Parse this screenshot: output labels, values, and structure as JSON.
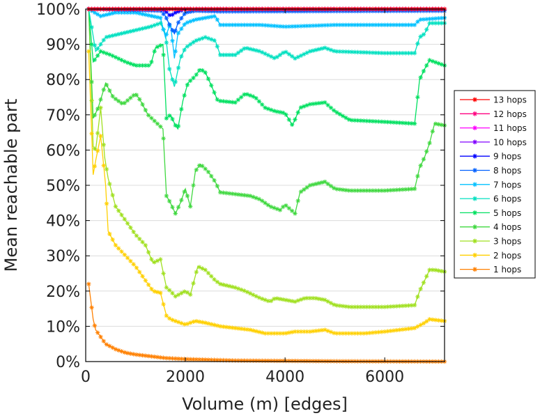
{
  "chart_data": {
    "type": "line",
    "title": "",
    "xlabel": "Volume (m) [edges]",
    "ylabel": "Mean reachable part",
    "xlim": [
      0,
      7200
    ],
    "ylim": [
      0,
      100
    ],
    "x_ticks": [
      0,
      2000,
      4000,
      6000
    ],
    "x_tick_labels": [
      "0",
      "2000",
      "4000",
      "6000"
    ],
    "y_ticks": [
      0,
      10,
      20,
      30,
      40,
      50,
      60,
      70,
      80,
      90,
      100
    ],
    "y_tick_labels": [
      "0%",
      "10%",
      "20%",
      "30%",
      "40%",
      "50%",
      "60%",
      "70%",
      "80%",
      "90%",
      "100%"
    ],
    "grid": "horizontal",
    "legend_position": "right",
    "series": [
      {
        "name": "13 hops",
        "color": "#ff0000",
        "points": [
          [
            60,
            100
          ],
          [
            7200,
            100
          ]
        ]
      },
      {
        "name": "12 hops",
        "color": "#ff0080",
        "points": [
          [
            60,
            100
          ],
          [
            7200,
            100
          ]
        ]
      },
      {
        "name": "11 hops",
        "color": "#ff00ff",
        "points": [
          [
            60,
            100
          ],
          [
            7200,
            100
          ]
        ]
      },
      {
        "name": "10 hops",
        "color": "#8000ff",
        "points": [
          [
            60,
            100
          ],
          [
            7200,
            100
          ]
        ]
      },
      {
        "name": "9 hops",
        "color": "#0000ff",
        "points": [
          [
            60,
            100
          ],
          [
            1500,
            100
          ],
          [
            1600,
            99.5
          ],
          [
            1700,
            98
          ],
          [
            1800,
            99
          ],
          [
            2000,
            100
          ],
          [
            7200,
            100
          ]
        ]
      },
      {
        "name": "8 hops",
        "color": "#0060ff",
        "points": [
          [
            60,
            100
          ],
          [
            1500,
            99.5
          ],
          [
            1600,
            98
          ],
          [
            1700,
            95
          ],
          [
            1780,
            93
          ],
          [
            1850,
            96
          ],
          [
            2000,
            99
          ],
          [
            2200,
            99.5
          ],
          [
            2700,
            99.3
          ],
          [
            7200,
            99.5
          ]
        ]
      },
      {
        "name": "7 hops",
        "color": "#00c0ff",
        "points": [
          [
            60,
            100
          ],
          [
            300,
            98
          ],
          [
            600,
            99
          ],
          [
            1000,
            99
          ],
          [
            1500,
            97.5
          ],
          [
            1600,
            92
          ],
          [
            1700,
            96
          ],
          [
            1780,
            86
          ],
          [
            1850,
            93
          ],
          [
            2000,
            96
          ],
          [
            2200,
            97
          ],
          [
            2600,
            98
          ],
          [
            2700,
            95.5
          ],
          [
            3500,
            95.5
          ],
          [
            4000,
            95
          ],
          [
            5000,
            95.5
          ],
          [
            6000,
            95.5
          ],
          [
            6600,
            95.5
          ],
          [
            6700,
            97
          ],
          [
            7200,
            97.5
          ]
        ]
      },
      {
        "name": "6 hops",
        "color": "#00e0c0",
        "points": [
          [
            60,
            100
          ],
          [
            200,
            88
          ],
          [
            400,
            92
          ],
          [
            700,
            93
          ],
          [
            1000,
            94
          ],
          [
            1300,
            95
          ],
          [
            1500,
            96
          ],
          [
            1600,
            93
          ],
          [
            1680,
            83
          ],
          [
            1780,
            78
          ],
          [
            1900,
            86
          ],
          [
            2000,
            89
          ],
          [
            2200,
            91
          ],
          [
            2400,
            92
          ],
          [
            2600,
            91
          ],
          [
            2700,
            87
          ],
          [
            3000,
            87
          ],
          [
            3200,
            89
          ],
          [
            3500,
            88
          ],
          [
            3800,
            86
          ],
          [
            4000,
            88
          ],
          [
            4200,
            86
          ],
          [
            4500,
            88
          ],
          [
            4800,
            89
          ],
          [
            5000,
            88
          ],
          [
            6000,
            87.5
          ],
          [
            6600,
            87.5
          ],
          [
            6700,
            92
          ],
          [
            6800,
            93
          ],
          [
            6900,
            96
          ],
          [
            7200,
            96
          ]
        ]
      },
      {
        "name": "5 hops",
        "color": "#00e060",
        "points": [
          [
            60,
            100
          ],
          [
            150,
            85
          ],
          [
            300,
            88
          ],
          [
            500,
            87
          ],
          [
            800,
            85
          ],
          [
            1000,
            84
          ],
          [
            1300,
            84
          ],
          [
            1400,
            89
          ],
          [
            1550,
            90
          ],
          [
            1620,
            69
          ],
          [
            1700,
            70
          ],
          [
            1800,
            67
          ],
          [
            1850,
            66
          ],
          [
            1950,
            74
          ],
          [
            2050,
            79
          ],
          [
            2200,
            81
          ],
          [
            2300,
            83
          ],
          [
            2400,
            82
          ],
          [
            2500,
            79
          ],
          [
            2650,
            74
          ],
          [
            3000,
            73.5
          ],
          [
            3200,
            76
          ],
          [
            3400,
            75
          ],
          [
            3600,
            72
          ],
          [
            3800,
            71
          ],
          [
            4000,
            70.5
          ],
          [
            4150,
            67
          ],
          [
            4300,
            72
          ],
          [
            4500,
            73
          ],
          [
            4800,
            73.5
          ],
          [
            5000,
            71
          ],
          [
            5300,
            68.5
          ],
          [
            6000,
            68
          ],
          [
            6600,
            67.5
          ],
          [
            6700,
            80
          ],
          [
            6800,
            83
          ],
          [
            6900,
            85.5
          ],
          [
            7000,
            85
          ],
          [
            7200,
            84
          ]
        ]
      },
      {
        "name": "4 hops",
        "color": "#40d840",
        "points": [
          [
            60,
            100
          ],
          [
            150,
            69
          ],
          [
            250,
            72
          ],
          [
            400,
            79
          ],
          [
            550,
            75
          ],
          [
            750,
            73
          ],
          [
            1000,
            76
          ],
          [
            1100,
            74
          ],
          [
            1250,
            70
          ],
          [
            1400,
            68
          ],
          [
            1550,
            66
          ],
          [
            1620,
            47
          ],
          [
            1700,
            45
          ],
          [
            1800,
            42
          ],
          [
            1900,
            45
          ],
          [
            2000,
            49
          ],
          [
            2100,
            44
          ],
          [
            2200,
            54
          ],
          [
            2300,
            56
          ],
          [
            2450,
            54
          ],
          [
            2600,
            51
          ],
          [
            2700,
            48
          ],
          [
            3000,
            47.5
          ],
          [
            3300,
            47
          ],
          [
            3500,
            46
          ],
          [
            3700,
            44
          ],
          [
            3900,
            43
          ],
          [
            4000,
            44.5
          ],
          [
            4200,
            42
          ],
          [
            4300,
            48
          ],
          [
            4500,
            50
          ],
          [
            4800,
            51
          ],
          [
            5000,
            49
          ],
          [
            5300,
            48.5
          ],
          [
            6000,
            48.5
          ],
          [
            6600,
            49
          ],
          [
            6700,
            55
          ],
          [
            6800,
            58
          ],
          [
            6900,
            62
          ],
          [
            7000,
            67.5
          ],
          [
            7200,
            67
          ]
        ]
      },
      {
        "name": "3 hops",
        "color": "#a0e020",
        "points": [
          [
            60,
            100
          ],
          [
            150,
            61
          ],
          [
            200,
            60
          ],
          [
            300,
            72
          ],
          [
            380,
            58
          ],
          [
            450,
            52
          ],
          [
            600,
            44
          ],
          [
            800,
            40
          ],
          [
            1000,
            36
          ],
          [
            1200,
            33
          ],
          [
            1350,
            28
          ],
          [
            1500,
            29
          ],
          [
            1620,
            21
          ],
          [
            1700,
            20
          ],
          [
            1800,
            18.5
          ],
          [
            2000,
            20
          ],
          [
            2100,
            19
          ],
          [
            2250,
            27
          ],
          [
            2400,
            26
          ],
          [
            2600,
            23
          ],
          [
            2700,
            22
          ],
          [
            3000,
            21
          ],
          [
            3200,
            20
          ],
          [
            3500,
            18
          ],
          [
            3700,
            17
          ],
          [
            3800,
            18
          ],
          [
            4000,
            17.5
          ],
          [
            4200,
            17
          ],
          [
            4400,
            18
          ],
          [
            4600,
            18
          ],
          [
            4800,
            17.5
          ],
          [
            5000,
            16
          ],
          [
            5300,
            15.5
          ],
          [
            6000,
            15.5
          ],
          [
            6600,
            16
          ],
          [
            6700,
            20
          ],
          [
            6800,
            23
          ],
          [
            6900,
            26
          ],
          [
            7000,
            26
          ],
          [
            7200,
            25.5
          ]
        ]
      },
      {
        "name": "2 hops",
        "color": "#ffd000",
        "points": [
          [
            60,
            88
          ],
          [
            150,
            53
          ],
          [
            200,
            57
          ],
          [
            300,
            64
          ],
          [
            400,
            50
          ],
          [
            450,
            37
          ],
          [
            600,
            33
          ],
          [
            800,
            30
          ],
          [
            1000,
            27
          ],
          [
            1200,
            23
          ],
          [
            1350,
            20
          ],
          [
            1500,
            19.5
          ],
          [
            1620,
            13
          ],
          [
            1700,
            12
          ],
          [
            1900,
            11
          ],
          [
            2000,
            10.5
          ],
          [
            2200,
            11.5
          ],
          [
            2400,
            11
          ],
          [
            2700,
            10
          ],
          [
            3000,
            9.5
          ],
          [
            3300,
            9
          ],
          [
            3600,
            8
          ],
          [
            4000,
            8
          ],
          [
            4200,
            8.5
          ],
          [
            4500,
            8.5
          ],
          [
            4800,
            9
          ],
          [
            5000,
            8
          ],
          [
            5300,
            8
          ],
          [
            5600,
            8
          ],
          [
            6000,
            8.5
          ],
          [
            6600,
            9.5
          ],
          [
            6800,
            11
          ],
          [
            6900,
            12
          ],
          [
            7200,
            11.5
          ]
        ]
      },
      {
        "name": "1 hops",
        "color": "#ff8000",
        "points": [
          [
            60,
            22
          ],
          [
            150,
            12
          ],
          [
            200,
            9
          ],
          [
            300,
            7
          ],
          [
            400,
            5
          ],
          [
            600,
            3.5
          ],
          [
            800,
            2.5
          ],
          [
            1000,
            2
          ],
          [
            1300,
            1.5
          ],
          [
            1600,
            1
          ],
          [
            2000,
            0.7
          ],
          [
            3000,
            0.3
          ],
          [
            5000,
            0.1
          ],
          [
            7200,
            0
          ]
        ]
      }
    ]
  }
}
